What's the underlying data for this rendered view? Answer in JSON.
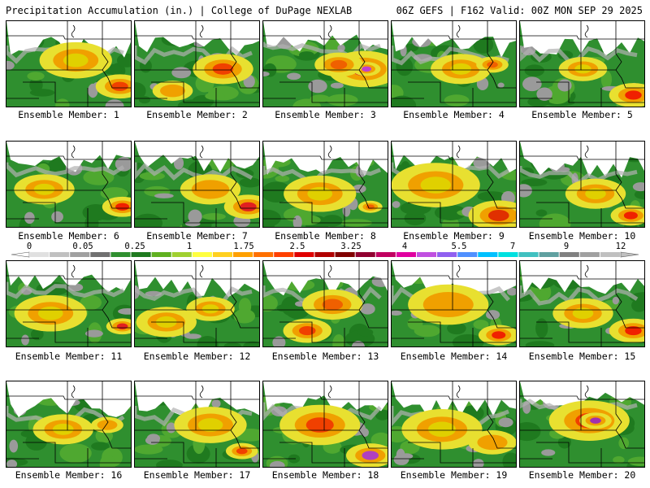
{
  "header": {
    "left": "Precipitation Accumulation (in.) | College of DuPage NEXLAB",
    "right": "06Z GEFS | F162 Valid: 00Z MON SEP 29 2025"
  },
  "panels": [
    {
      "label": "Ensemble Member: 1",
      "hot": [
        [
          0.55,
          0.45,
          0.18,
          "#e0d000"
        ],
        [
          0.9,
          0.75,
          0.12,
          "#f04000"
        ]
      ],
      "pale": 0.35
    },
    {
      "label": "Ensemble Member: 2",
      "hot": [
        [
          0.7,
          0.55,
          0.15,
          "#f04000"
        ],
        [
          0.3,
          0.8,
          0.1,
          "#f0a000"
        ]
      ],
      "pale": 0.35
    },
    {
      "label": "Ensemble Member: 3",
      "hot": [
        [
          0.8,
          0.55,
          0.18,
          "#d00040"
        ],
        [
          0.82,
          0.55,
          0.07,
          "#c040d0"
        ],
        [
          0.6,
          0.5,
          0.12,
          "#f06000"
        ]
      ],
      "pale": 0.3
    },
    {
      "label": "Ensemble Member: 4",
      "hot": [
        [
          0.55,
          0.55,
          0.15,
          "#e0d000"
        ],
        [
          0.8,
          0.5,
          0.08,
          "#f06000"
        ]
      ],
      "pale": 0.35
    },
    {
      "label": "Ensemble Member: 5",
      "hot": [
        [
          0.5,
          0.55,
          0.12,
          "#e0d000"
        ],
        [
          0.9,
          0.85,
          0.12,
          "#f02000"
        ]
      ],
      "pale": 0.35
    },
    {
      "label": "Ensemble Member: 6",
      "hot": [
        [
          0.3,
          0.55,
          0.15,
          "#e0d000"
        ],
        [
          0.92,
          0.75,
          0.1,
          "#f02000"
        ]
      ],
      "pale": 0.3
    },
    {
      "label": "Ensemble Member: 7",
      "hot": [
        [
          0.6,
          0.55,
          0.15,
          "#f0a000"
        ],
        [
          0.9,
          0.75,
          0.12,
          "#e02020"
        ]
      ],
      "pale": 0.3
    },
    {
      "label": "Ensemble Member: 8",
      "hot": [
        [
          0.45,
          0.6,
          0.18,
          "#e0d000"
        ],
        [
          0.85,
          0.75,
          0.06,
          "#f06000"
        ]
      ],
      "pale": 0.35
    },
    {
      "label": "Ensemble Member: 9",
      "hot": [
        [
          0.35,
          0.5,
          0.22,
          "#e0d000"
        ],
        [
          0.85,
          0.85,
          0.15,
          "#e03000"
        ]
      ],
      "pale": 0.3
    },
    {
      "label": "Ensemble Member: 10",
      "hot": [
        [
          0.6,
          0.6,
          0.15,
          "#e0d000"
        ],
        [
          0.88,
          0.85,
          0.1,
          "#f02000"
        ]
      ],
      "pale": 0.35
    },
    {
      "label": "Ensemble Member: 11",
      "hot": [
        [
          0.35,
          0.6,
          0.18,
          "#e0d000"
        ],
        [
          0.92,
          0.75,
          0.08,
          "#e02020"
        ]
      ],
      "pale": 0.3
    },
    {
      "label": "Ensemble Member: 12",
      "hot": [
        [
          0.25,
          0.7,
          0.15,
          "#e0d000"
        ],
        [
          0.6,
          0.55,
          0.12,
          "#e0d000"
        ]
      ],
      "pale": 0.35
    },
    {
      "label": "Ensemble Member: 13",
      "hot": [
        [
          0.55,
          0.5,
          0.15,
          "#f06000"
        ],
        [
          0.35,
          0.8,
          0.12,
          "#f04000"
        ]
      ],
      "pale": 0.35
    },
    {
      "label": "Ensemble Member: 14",
      "hot": [
        [
          0.45,
          0.5,
          0.2,
          "#f0a000"
        ],
        [
          0.85,
          0.85,
          0.1,
          "#f02000"
        ]
      ],
      "pale": 0.35
    },
    {
      "label": "Ensemble Member: 15",
      "hot": [
        [
          0.5,
          0.6,
          0.15,
          "#e0d000"
        ],
        [
          0.9,
          0.8,
          0.12,
          "#f02000"
        ]
      ],
      "pale": 0.35
    },
    {
      "label": "Ensemble Member: 16",
      "hot": [
        [
          0.45,
          0.55,
          0.15,
          "#e0d000"
        ],
        [
          0.8,
          0.5,
          0.08,
          "#f0a000"
        ]
      ],
      "pale": 0.35
    },
    {
      "label": "Ensemble Member: 17",
      "hot": [
        [
          0.6,
          0.5,
          0.18,
          "#e0d000"
        ],
        [
          0.85,
          0.8,
          0.08,
          "#f04000"
        ]
      ],
      "pale": 0.35
    },
    {
      "label": "Ensemble Member: 18",
      "hot": [
        [
          0.45,
          0.5,
          0.2,
          "#f04000"
        ],
        [
          0.85,
          0.85,
          0.12,
          "#b040c0"
        ]
      ],
      "pale": 0.3
    },
    {
      "label": "Ensemble Member: 19",
      "hot": [
        [
          0.4,
          0.55,
          0.2,
          "#e0d000"
        ],
        [
          0.8,
          0.7,
          0.12,
          "#f0a000"
        ]
      ],
      "pale": 0.35
    },
    {
      "label": "Ensemble Member: 20",
      "hot": [
        [
          0.55,
          0.45,
          0.2,
          "#f04000"
        ],
        [
          0.6,
          0.45,
          0.08,
          "#a030b0"
        ]
      ],
      "pale": 0.25
    }
  ],
  "colorscale": {
    "ticks": [
      "0",
      "0.05",
      "0.25",
      "1",
      "1.75",
      "2.5",
      "3.25",
      "4",
      "5.5",
      "7",
      "9",
      "12"
    ],
    "colors": [
      "#e0e0e0",
      "#c0c0c0",
      "#a0a0a0",
      "#707070",
      "#2f8f2f",
      "#1f7a1f",
      "#60b020",
      "#a0d030",
      "#ffff40",
      "#ffd020",
      "#ffa000",
      "#ff7000",
      "#ff4000",
      "#e00000",
      "#b00000",
      "#800000",
      "#900030",
      "#c00060",
      "#e000a0",
      "#c050e0",
      "#9060f0",
      "#5090ff",
      "#00c0ff",
      "#00e0e0",
      "#40c0c0",
      "#60a0a0",
      "#808080",
      "#a0a0a0",
      "#c0c0c0"
    ]
  }
}
